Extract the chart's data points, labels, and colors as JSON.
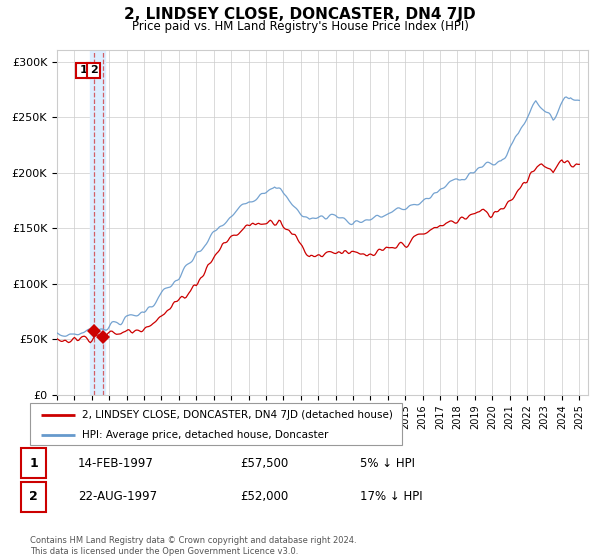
{
  "title": "2, LINDSEY CLOSE, DONCASTER, DN4 7JD",
  "subtitle": "Price paid vs. HM Land Registry's House Price Index (HPI)",
  "legend_line1": "2, LINDSEY CLOSE, DONCASTER, DN4 7JD (detached house)",
  "legend_line2": "HPI: Average price, detached house, Doncaster",
  "transaction1_label": "1",
  "transaction1_date": "14-FEB-1997",
  "transaction1_price": "£57,500",
  "transaction1_hpi": "5% ↓ HPI",
  "transaction2_label": "2",
  "transaction2_date": "22-AUG-1997",
  "transaction2_price": "£52,000",
  "transaction2_hpi": "17% ↓ HPI",
  "footer": "Contains HM Land Registry data © Crown copyright and database right 2024.\nThis data is licensed under the Open Government Licence v3.0.",
  "transaction1_x": 1997.12,
  "transaction1_y": 57500,
  "transaction2_x": 1997.64,
  "transaction2_y": 52000,
  "shade_x1": 1996.92,
  "shade_x2": 1997.75,
  "ylim": [
    0,
    310000
  ],
  "xlim": [
    1995.0,
    2025.5
  ],
  "yticks": [
    0,
    50000,
    100000,
    150000,
    200000,
    250000,
    300000
  ],
  "ytick_labels": [
    "£0",
    "£50K",
    "£100K",
    "£150K",
    "£200K",
    "£250K",
    "£300K"
  ],
  "xticks": [
    1995,
    1996,
    1997,
    1998,
    1999,
    2000,
    2001,
    2002,
    2003,
    2004,
    2005,
    2006,
    2007,
    2008,
    2009,
    2010,
    2011,
    2012,
    2013,
    2014,
    2015,
    2016,
    2017,
    2018,
    2019,
    2020,
    2021,
    2022,
    2023,
    2024,
    2025
  ],
  "red_color": "#cc0000",
  "blue_color": "#6699cc",
  "shade_color": "#ddeeff",
  "vline_color": "#cc0000",
  "grid_color": "#cccccc",
  "box_color": "#cc0000",
  "marker_color": "#cc0000"
}
